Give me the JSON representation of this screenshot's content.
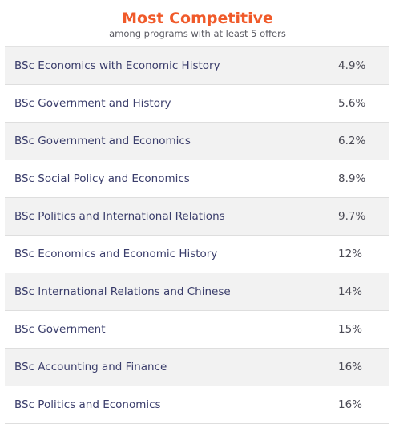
{
  "header": {
    "title": "Most Competitive",
    "subtitle": "among programs with at least 5 offers"
  },
  "rows": [
    {
      "program": "BSc Economics with Economic History",
      "rate": "4.9%"
    },
    {
      "program": "BSc Government and History",
      "rate": "5.6%"
    },
    {
      "program": "BSc Government and Economics",
      "rate": "6.2%"
    },
    {
      "program": "BSc Social Policy and Economics",
      "rate": "8.9%"
    },
    {
      "program": "BSc Politics and International Relations",
      "rate": "9.7%"
    },
    {
      "program": "BSc Economics and Economic History",
      "rate": "12%"
    },
    {
      "program": "BSc International Relations and Chinese",
      "rate": "14%"
    },
    {
      "program": "BSc Government",
      "rate": "15%"
    },
    {
      "program": "BSc Accounting and Finance",
      "rate": "16%"
    },
    {
      "program": "BSc Politics and Economics",
      "rate": "16%"
    }
  ]
}
